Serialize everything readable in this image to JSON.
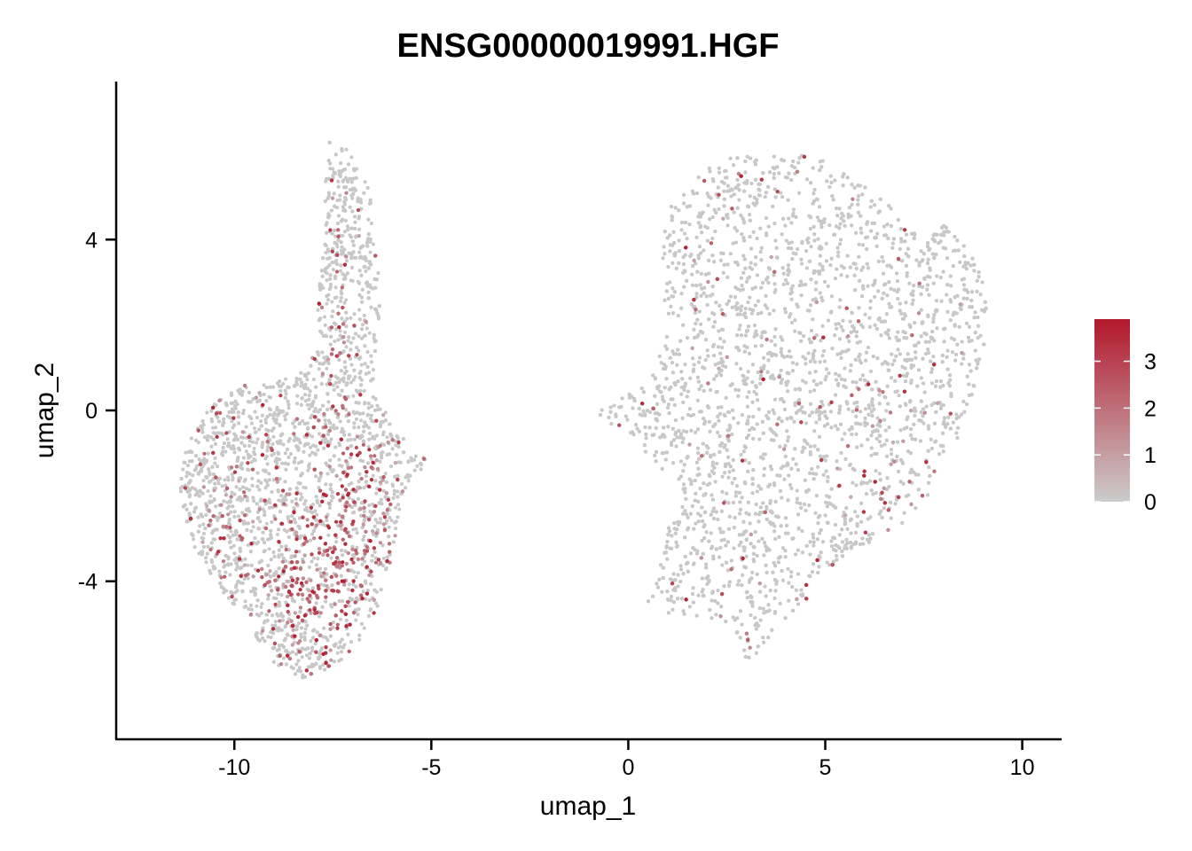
{
  "chart_data": {
    "type": "scatter",
    "title": "ENSG00000019991.HGF",
    "xlabel": "umap_1",
    "ylabel": "umap_2",
    "xlim": [
      -13,
      11
    ],
    "ylim": [
      -7.7,
      7.7
    ],
    "x_ticks": [
      -10,
      -5,
      0,
      5,
      10
    ],
    "x_tick_labels": [
      "-10",
      "-5",
      "0",
      "5",
      "10"
    ],
    "y_ticks": [
      -4,
      0,
      4
    ],
    "y_tick_labels": [
      "-4",
      "0",
      "4"
    ],
    "grid": false,
    "legend": {
      "placement": "right",
      "type": "colorbar",
      "min": 0,
      "max": 3.9,
      "ticks": [
        0,
        1,
        2,
        3
      ],
      "tick_labels": [
        "0",
        "1",
        "2",
        "3"
      ],
      "low_color": "#cccccc",
      "high_color": "#b2182b"
    },
    "point_color_zero": "#c8c8c8",
    "clusters": [
      {
        "region": "left",
        "shape": [
          [
            -7.6,
            6.3
          ],
          [
            -7.3,
            6.2
          ],
          [
            -6.9,
            6.0
          ],
          [
            -6.6,
            5.2
          ],
          [
            -6.4,
            4.2
          ],
          [
            -6.3,
            2.5
          ],
          [
            -6.4,
            1.2
          ],
          [
            -6.5,
            0.4
          ],
          [
            -6.1,
            -0.1
          ],
          [
            -5.6,
            -0.7
          ],
          [
            -5.0,
            -1.3
          ],
          [
            -5.5,
            -1.6
          ],
          [
            -5.8,
            -2.3
          ],
          [
            -6.0,
            -3.5
          ],
          [
            -6.3,
            -4.5
          ],
          [
            -6.9,
            -5.5
          ],
          [
            -7.6,
            -6.1
          ],
          [
            -8.3,
            -6.3
          ],
          [
            -9.0,
            -5.9
          ],
          [
            -9.6,
            -5.1
          ],
          [
            -10.4,
            -4.2
          ],
          [
            -11.1,
            -3.1
          ],
          [
            -11.4,
            -1.8
          ],
          [
            -11.2,
            -0.8
          ],
          [
            -10.6,
            0.1
          ],
          [
            -9.8,
            0.6
          ],
          [
            -9.0,
            0.7
          ],
          [
            -8.3,
            0.9
          ],
          [
            -7.9,
            1.5
          ],
          [
            -7.9,
            2.6
          ],
          [
            -7.7,
            4.0
          ],
          [
            -7.7,
            5.2
          ]
        ],
        "hotspots": [
          [
            -7.2,
            -3.2,
            1.2,
            1.8,
            0.42
          ],
          [
            -8.2,
            -4.3,
            1.2,
            1.2,
            0.32
          ],
          [
            -7.0,
            -1.2,
            0.9,
            0.9,
            0.25
          ],
          [
            -7.2,
            1.5,
            0.5,
            2.0,
            0.12
          ],
          [
            -9.8,
            -2.5,
            1.4,
            1.6,
            0.12
          ]
        ],
        "base_rate": 0.06,
        "n_points": 5200
      },
      {
        "region": "right",
        "shape": [
          [
            -1.0,
            0.1
          ],
          [
            -0.4,
            0.3
          ],
          [
            0.6,
            0.8
          ],
          [
            1.0,
            1.8
          ],
          [
            0.8,
            3.0
          ],
          [
            0.9,
            4.5
          ],
          [
            1.5,
            5.4
          ],
          [
            2.5,
            5.9
          ],
          [
            4.0,
            6.1
          ],
          [
            5.3,
            5.8
          ],
          [
            6.5,
            5.0
          ],
          [
            7.3,
            4.2
          ],
          [
            8.0,
            4.4
          ],
          [
            8.5,
            3.9
          ],
          [
            9.1,
            3.2
          ],
          [
            9.1,
            1.5
          ],
          [
            8.8,
            0.5
          ],
          [
            8.3,
            -0.8
          ],
          [
            7.6,
            -2.0
          ],
          [
            6.8,
            -2.8
          ],
          [
            5.7,
            -3.3
          ],
          [
            4.9,
            -3.8
          ],
          [
            4.5,
            -4.2
          ],
          [
            4.6,
            -4.7
          ],
          [
            3.9,
            -4.9
          ],
          [
            3.5,
            -5.6
          ],
          [
            3.0,
            -5.9
          ],
          [
            2.8,
            -5.3
          ],
          [
            2.5,
            -5.0
          ],
          [
            1.5,
            -4.8
          ],
          [
            0.6,
            -4.7
          ],
          [
            0.4,
            -4.2
          ],
          [
            0.9,
            -3.5
          ],
          [
            0.9,
            -2.6
          ],
          [
            1.4,
            -2.1
          ],
          [
            0.6,
            -1.1
          ],
          [
            -0.4,
            -0.4
          ]
        ],
        "hotspots": [
          [
            6.4,
            -1.9,
            1.0,
            0.7,
            0.35
          ],
          [
            4.8,
            -0.3,
            1.3,
            1.0,
            0.08
          ]
        ],
        "base_rate": 0.035,
        "n_points": 7600
      }
    ]
  }
}
